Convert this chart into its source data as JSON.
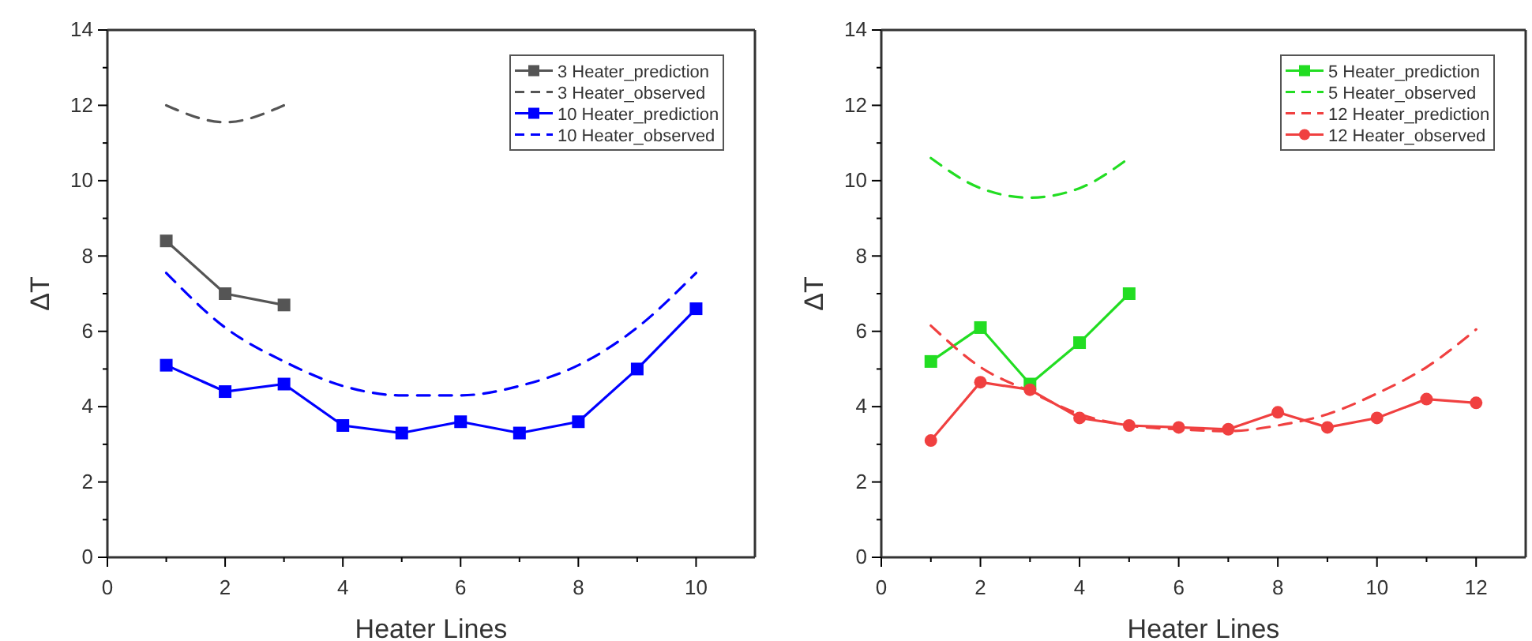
{
  "chart_data": [
    {
      "type": "line",
      "xlabel": "Heater Lines",
      "ylabel": "ΔT",
      "xlim": [
        0,
        11
      ],
      "ylim": [
        0,
        14
      ],
      "xticks": [
        0,
        {
          "value": 1,
          "label": null
        },
        2,
        {
          "value": 3,
          "label": null
        },
        4,
        {
          "value": 5,
          "label": null
        },
        6,
        {
          "value": 7,
          "label": null
        },
        8,
        {
          "value": 9,
          "label": null
        },
        10
      ],
      "yticks": [
        0,
        {
          "value": 1,
          "label": null
        },
        2,
        {
          "value": 3,
          "label": null
        },
        4,
        {
          "value": 5,
          "label": null
        },
        6,
        {
          "value": 7,
          "label": null
        },
        8,
        {
          "value": 9,
          "label": null
        },
        10,
        {
          "value": 11,
          "label": null
        },
        12,
        {
          "value": 13,
          "label": null
        },
        14
      ],
      "legend": "top right",
      "grid": false,
      "series": [
        {
          "name": "3 Heater_prediction",
          "color": "#555555",
          "marker": "square",
          "line_style": "solid",
          "x": [
            1,
            2,
            3
          ],
          "values": [
            8.4,
            7.0,
            6.7
          ]
        },
        {
          "name": "3 Heater_observed",
          "color": "#555555",
          "marker": "none",
          "line_style": "dashed",
          "x": [
            1,
            2,
            3
          ],
          "values": [
            12.0,
            11.55,
            12.0
          ]
        },
        {
          "name": "10 Heater_prediction",
          "color": "#0000ff",
          "marker": "square",
          "line_style": "solid",
          "x": [
            1,
            2,
            3,
            4,
            5,
            6,
            7,
            8,
            9,
            10
          ],
          "values": [
            5.1,
            4.4,
            4.6,
            3.5,
            3.3,
            3.6,
            3.3,
            3.6,
            5.0,
            6.6
          ]
        },
        {
          "name": "10 Heater_observed",
          "color": "#0000ff",
          "marker": "none",
          "line_style": "dashed",
          "x": [
            1,
            2,
            3,
            4,
            5,
            6,
            7,
            8,
            9,
            10
          ],
          "values": [
            7.55,
            6.1,
            5.2,
            4.55,
            4.3,
            4.3,
            4.55,
            5.1,
            6.1,
            7.55
          ]
        }
      ]
    },
    {
      "type": "line",
      "xlabel": "Heater Lines",
      "ylabel": "ΔT",
      "xlim": [
        0,
        13
      ],
      "ylim": [
        0,
        14
      ],
      "xticks": [
        0,
        {
          "value": 1,
          "label": null
        },
        2,
        {
          "value": 3,
          "label": null
        },
        4,
        {
          "value": 5,
          "label": null
        },
        6,
        {
          "value": 7,
          "label": null
        },
        8,
        {
          "value": 9,
          "label": null
        },
        10,
        {
          "value": 11,
          "label": null
        },
        12
      ],
      "yticks": [
        0,
        {
          "value": 1,
          "label": null
        },
        2,
        {
          "value": 3,
          "label": null
        },
        4,
        {
          "value": 5,
          "label": null
        },
        6,
        {
          "value": 7,
          "label": null
        },
        8,
        {
          "value": 9,
          "label": null
        },
        10,
        {
          "value": 11,
          "label": null
        },
        12,
        {
          "value": 13,
          "label": null
        },
        14
      ],
      "legend": "top right",
      "grid": false,
      "series": [
        {
          "name": "5 Heater_prediction",
          "color": "#22dd22",
          "marker": "square",
          "line_style": "solid",
          "x": [
            1,
            2,
            3,
            4,
            5
          ],
          "values": [
            5.2,
            6.1,
            4.6,
            5.7,
            7.0
          ]
        },
        {
          "name": "5 Heater_observed",
          "color": "#22dd22",
          "marker": "none",
          "line_style": "dashed",
          "x": [
            1,
            2,
            3,
            4,
            5
          ],
          "values": [
            10.6,
            9.8,
            9.55,
            9.8,
            10.6
          ]
        },
        {
          "name": "12 Heater_prediction",
          "color": "#f04040",
          "marker": "none",
          "line_style": "dashed",
          "x": [
            1,
            2,
            3,
            4,
            5,
            6,
            7,
            8,
            9,
            10,
            11,
            12
          ],
          "values": [
            6.15,
            5.05,
            4.4,
            3.8,
            3.5,
            3.4,
            3.35,
            3.5,
            3.8,
            4.35,
            5.05,
            6.05
          ]
        },
        {
          "name": "12 Heater_observed",
          "color": "#f04040",
          "marker": "circle",
          "line_style": "solid",
          "x": [
            1,
            2,
            3,
            4,
            5,
            6,
            7,
            8,
            9,
            10,
            11,
            12
          ],
          "values": [
            3.1,
            4.65,
            4.45,
            3.7,
            3.5,
            3.45,
            3.4,
            3.85,
            3.45,
            3.7,
            4.2,
            4.1
          ]
        }
      ]
    }
  ]
}
